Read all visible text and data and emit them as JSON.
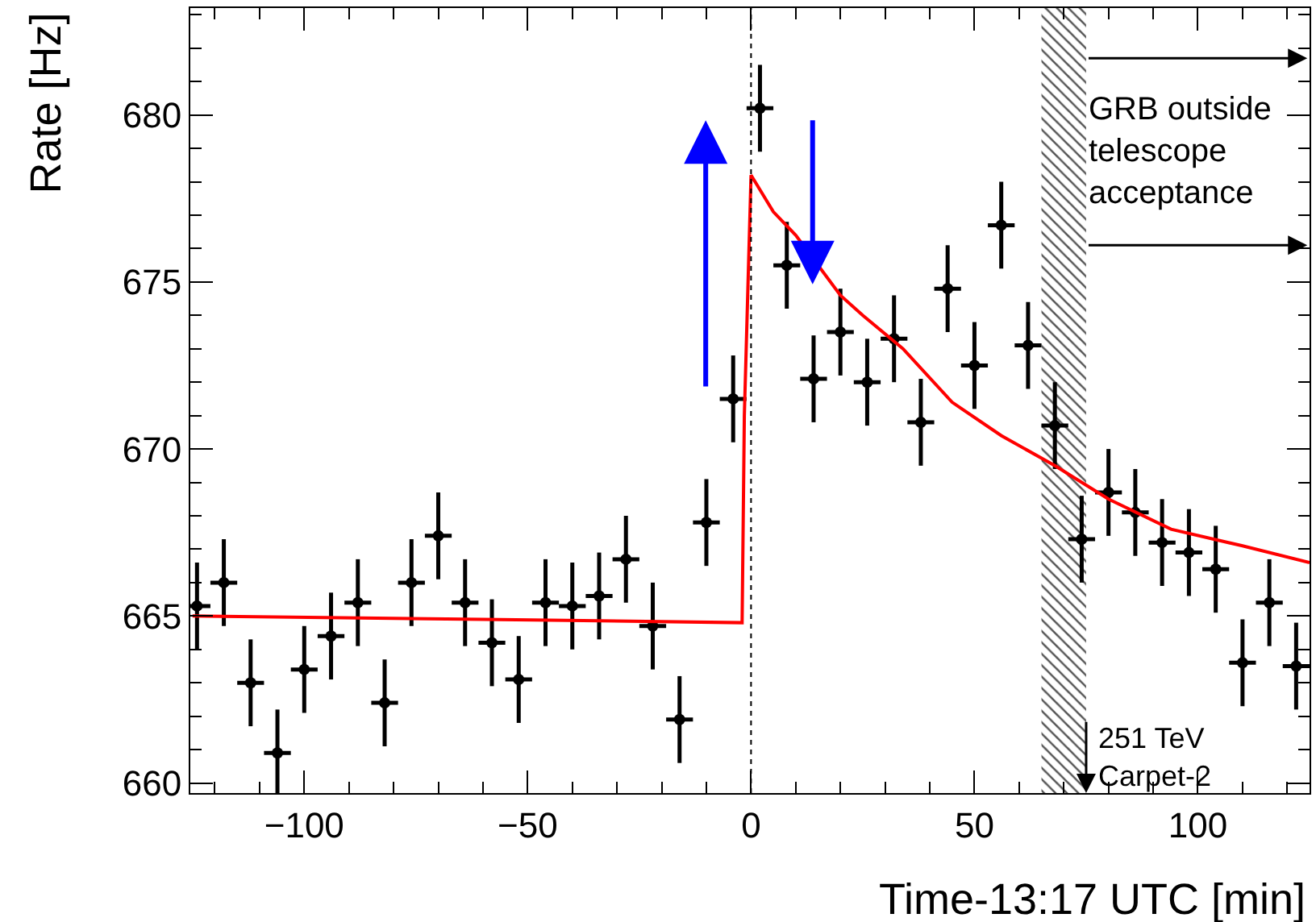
{
  "chart_data": {
    "type": "scatter",
    "xlabel": "Time-13:17 UTC [min]",
    "ylabel": "Rate [Hz]",
    "xlim": [
      -125.5,
      125
    ],
    "xticks": [
      -100,
      -50,
      0,
      50,
      100
    ],
    "ylim": [
      659.7,
      683.2
    ],
    "yticks": [
      660,
      665,
      670,
      675,
      680
    ],
    "grid": false,
    "series": [
      {
        "color": "#000000",
        "marker": "circle",
        "x": [
          -124,
          -118,
          -112,
          -106,
          -100,
          -94,
          -88,
          -82,
          -76,
          -70,
          -64,
          -58,
          -52,
          -46,
          -40,
          -34,
          -28,
          -22,
          -16,
          -10,
          -4,
          2,
          8,
          14,
          20,
          26,
          32,
          38,
          44,
          50,
          56,
          62,
          68,
          74,
          80,
          86,
          92,
          98,
          104,
          110,
          116,
          122
        ],
        "values": [
          665.3,
          666.0,
          663.0,
          660.9,
          663.4,
          664.4,
          665.4,
          662.4,
          666.0,
          667.4,
          665.4,
          664.2,
          663.1,
          665.4,
          665.3,
          665.6,
          666.7,
          664.7,
          661.9,
          667.8,
          671.5,
          680.2,
          675.5,
          672.1,
          673.5,
          672.0,
          673.3,
          670.8,
          674.8,
          672.5,
          676.7,
          673.1,
          670.7,
          667.3,
          668.7,
          668.1,
          667.2,
          666.9,
          666.4,
          663.6,
          665.4,
          663.5
        ],
        "errors": [
          1.3,
          1.3,
          1.3,
          1.3,
          1.3,
          1.3,
          1.3,
          1.3,
          1.3,
          1.3,
          1.3,
          1.3,
          1.3,
          1.3,
          1.3,
          1.3,
          1.3,
          1.3,
          1.3,
          1.3,
          1.3,
          1.3,
          1.3,
          1.3,
          1.3,
          1.3,
          1.3,
          1.3,
          1.3,
          1.3,
          1.3,
          1.3,
          1.3,
          1.3,
          1.3,
          1.3,
          1.3,
          1.3,
          1.3,
          1.3,
          1.3,
          1.3
        ],
        "xerrors": [
          3,
          3,
          3,
          3,
          3,
          3,
          3,
          3,
          3,
          3,
          3,
          3,
          3,
          3,
          3,
          3,
          3,
          3,
          3,
          3,
          3,
          3,
          3,
          3,
          3,
          3,
          3,
          3,
          3,
          3,
          3,
          3,
          3,
          3,
          3,
          3,
          3,
          3,
          3,
          3,
          3,
          3
        ]
      },
      {
        "type": "line",
        "color": "#ff0000",
        "line_style": "solid",
        "marker": "none",
        "x": [
          -125,
          -60,
          -2,
          -1.5,
          0,
          5,
          10,
          20,
          25,
          34,
          45,
          56,
          68,
          80,
          94,
          110,
          125
        ],
        "values": [
          665.0,
          664.9,
          664.8,
          671.0,
          678.2,
          677.1,
          676.4,
          674.6,
          674.0,
          673.0,
          671.4,
          670.4,
          669.5,
          668.5,
          667.6,
          667.1,
          666.6
        ]
      }
    ],
    "ref_lines": [
      {
        "axis": "x",
        "value": 0,
        "color": "#000000",
        "line_style": "dotted"
      }
    ],
    "bands": [
      {
        "axis": "x",
        "from": 65,
        "to": 75,
        "color": "#555555"
      }
    ],
    "annotations": [
      {
        "text": "GRB outside telescope acceptance",
        "x": 75,
        "y": 678.9
      },
      {
        "text": "251 TeV Carpet-2",
        "x": 75,
        "y": 661.9
      }
    ]
  }
}
